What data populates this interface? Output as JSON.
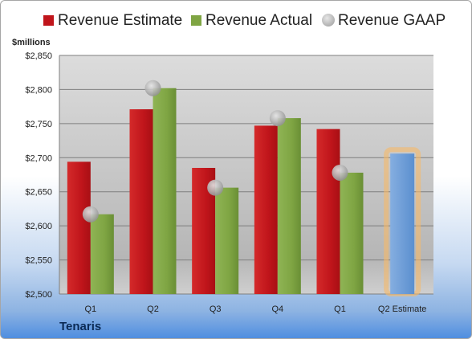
{
  "chart_data": {
    "type": "bar",
    "ylabel": "$millions",
    "ylim": [
      2500,
      2850
    ],
    "yticks": [
      2500,
      2550,
      2600,
      2650,
      2700,
      2750,
      2800,
      2850
    ],
    "ytick_labels": [
      "$2,500",
      "$2,550",
      "$2,600",
      "$2,650",
      "$2,700",
      "$2,750",
      "$2,800",
      "$2,850"
    ],
    "categories": [
      "Q1",
      "Q2",
      "Q3",
      "Q4",
      "Q1",
      "Q2 Estimate"
    ],
    "series": [
      {
        "name": "Revenue Estimate",
        "color": "#c0151b",
        "values": [
          2694,
          2771,
          2685,
          2747,
          2742,
          null
        ]
      },
      {
        "name": "Revenue Actual",
        "color": "#7fa543",
        "values": [
          2617,
          2802,
          2656,
          2758,
          2678,
          null
        ]
      },
      {
        "name": "Revenue GAAP",
        "color": "#a6a6a6",
        "marker": "circle",
        "values": [
          2617,
          2802,
          2656,
          2758,
          2678,
          null
        ]
      }
    ],
    "estimate_bar": {
      "category": "Q2 Estimate",
      "value": 2706,
      "color": "#6f9ed8",
      "glow": "#f7b967"
    },
    "grid": true,
    "legend": "top"
  },
  "company": "Tenaris"
}
